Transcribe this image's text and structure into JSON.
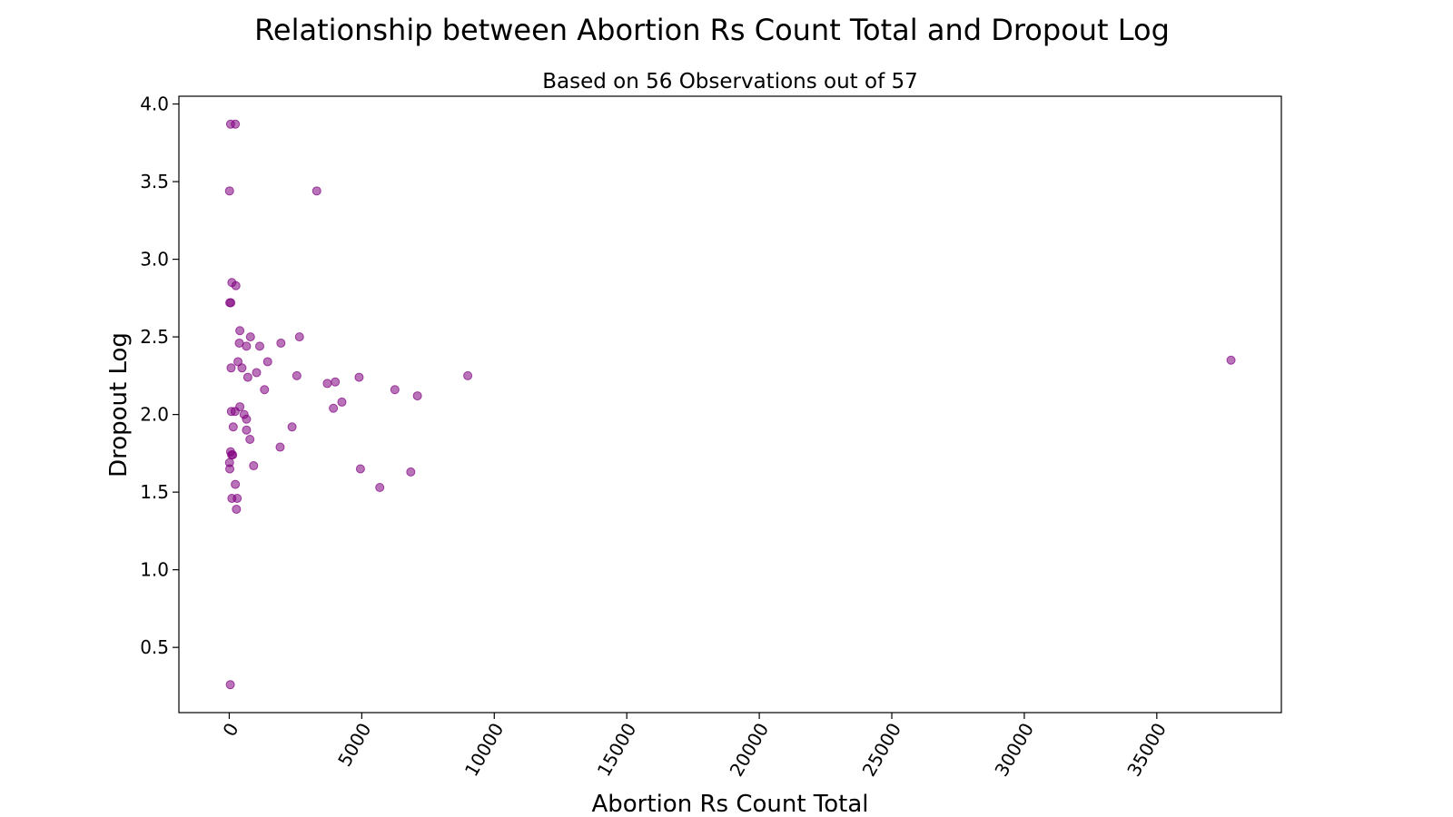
{
  "chart_data": {
    "type": "scatter",
    "title": "Relationship between Abortion Rs Count Total and Dropout Log",
    "subtitle": "Based on 56 Observations out of 57",
    "xlabel": "Abortion Rs Count Total",
    "ylabel": "Dropout Log",
    "xlim": [
      -1900,
      39700
    ],
    "ylim": [
      0.08,
      4.05
    ],
    "x_ticks": [
      0,
      5000,
      10000,
      15000,
      20000,
      25000,
      30000,
      35000
    ],
    "x_tick_labels": [
      "0",
      "5000",
      "10000",
      "15000",
      "20000",
      "25000",
      "30000",
      "35000"
    ],
    "y_ticks": [
      0.5,
      1.0,
      1.5,
      2.0,
      2.5,
      3.0,
      3.5,
      4.0
    ],
    "y_tick_labels": [
      "0.5",
      "1.0",
      "1.5",
      "2.0",
      "2.5",
      "3.0",
      "3.5",
      "4.0"
    ],
    "grid": false,
    "marker_color": "#800080",
    "points": [
      {
        "x": 50,
        "y": 3.87
      },
      {
        "x": 230,
        "y": 3.87
      },
      {
        "x": 10,
        "y": 3.44
      },
      {
        "x": 3300,
        "y": 3.44
      },
      {
        "x": 100,
        "y": 2.85
      },
      {
        "x": 250,
        "y": 2.83
      },
      {
        "x": 20,
        "y": 2.72
      },
      {
        "x": 60,
        "y": 2.72
      },
      {
        "x": 400,
        "y": 2.54
      },
      {
        "x": 800,
        "y": 2.5
      },
      {
        "x": 2650,
        "y": 2.5
      },
      {
        "x": 380,
        "y": 2.46
      },
      {
        "x": 1950,
        "y": 2.46
      },
      {
        "x": 650,
        "y": 2.44
      },
      {
        "x": 1150,
        "y": 2.44
      },
      {
        "x": 330,
        "y": 2.34
      },
      {
        "x": 1450,
        "y": 2.34
      },
      {
        "x": 37800,
        "y": 2.35
      },
      {
        "x": 70,
        "y": 2.3
      },
      {
        "x": 480,
        "y": 2.3
      },
      {
        "x": 1030,
        "y": 2.27
      },
      {
        "x": 700,
        "y": 2.24
      },
      {
        "x": 2550,
        "y": 2.25
      },
      {
        "x": 4900,
        "y": 2.24
      },
      {
        "x": 9000,
        "y": 2.25
      },
      {
        "x": 3700,
        "y": 2.2
      },
      {
        "x": 4000,
        "y": 2.21
      },
      {
        "x": 1330,
        "y": 2.16
      },
      {
        "x": 6250,
        "y": 2.16
      },
      {
        "x": 7100,
        "y": 2.12
      },
      {
        "x": 4250,
        "y": 2.08
      },
      {
        "x": 400,
        "y": 2.05
      },
      {
        "x": 3930,
        "y": 2.04
      },
      {
        "x": 80,
        "y": 2.02
      },
      {
        "x": 220,
        "y": 2.02
      },
      {
        "x": 560,
        "y": 2.0
      },
      {
        "x": 650,
        "y": 1.97
      },
      {
        "x": 150,
        "y": 1.92
      },
      {
        "x": 2370,
        "y": 1.92
      },
      {
        "x": 650,
        "y": 1.9
      },
      {
        "x": 780,
        "y": 1.84
      },
      {
        "x": 1920,
        "y": 1.79
      },
      {
        "x": 50,
        "y": 1.76
      },
      {
        "x": 90,
        "y": 1.74
      },
      {
        "x": 130,
        "y": 1.74
      },
      {
        "x": 10,
        "y": 1.69
      },
      {
        "x": 920,
        "y": 1.67
      },
      {
        "x": 20,
        "y": 1.65
      },
      {
        "x": 4950,
        "y": 1.65
      },
      {
        "x": 6850,
        "y": 1.63
      },
      {
        "x": 230,
        "y": 1.55
      },
      {
        "x": 5680,
        "y": 1.53
      },
      {
        "x": 100,
        "y": 1.46
      },
      {
        "x": 300,
        "y": 1.46
      },
      {
        "x": 270,
        "y": 1.39
      },
      {
        "x": 40,
        "y": 0.26
      }
    ]
  }
}
